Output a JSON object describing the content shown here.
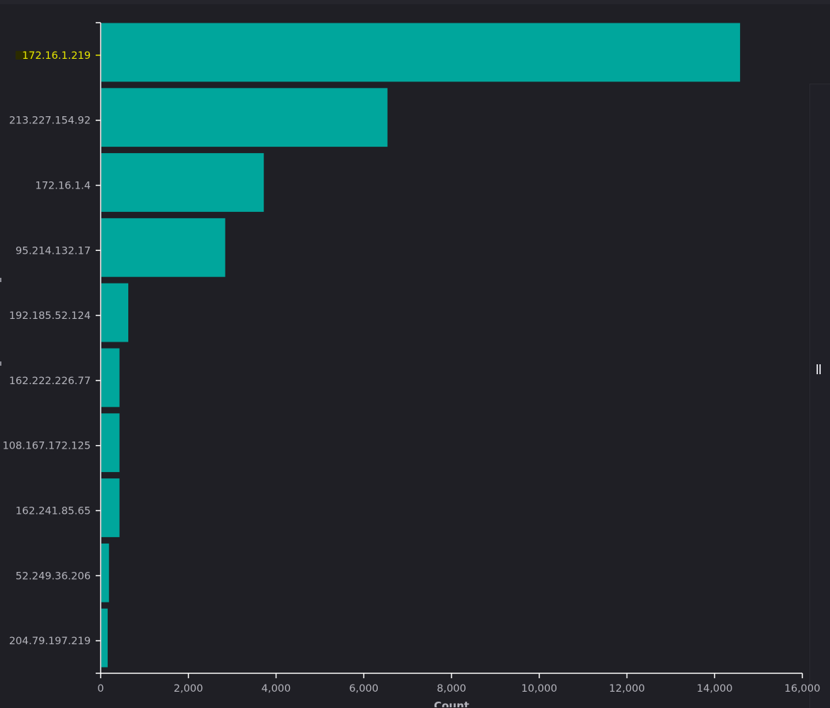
{
  "chart_data": {
    "type": "bar",
    "orientation": "horizontal",
    "categories": [
      "172.16.1.219",
      "213.227.154.92",
      "172.16.1.4",
      "95.214.132.17",
      "192.185.52.124",
      "162.222.226.77",
      "108.167.172.125",
      "162.241.85.65",
      "52.249.36.206",
      "204.79.197.219"
    ],
    "values": [
      14580,
      6540,
      3720,
      2840,
      630,
      430,
      430,
      430,
      190,
      160
    ],
    "xlabel": "Count",
    "ylabel": "",
    "xlim": [
      0,
      16000
    ],
    "xticks": [
      {
        "value": 0,
        "label": "0"
      },
      {
        "value": 2000,
        "label": "2,000"
      },
      {
        "value": 4000,
        "label": "4,000"
      },
      {
        "value": 6000,
        "label": "6,000"
      },
      {
        "value": 8000,
        "label": "8,000"
      },
      {
        "value": 10000,
        "label": "10,000"
      },
      {
        "value": 12000,
        "label": "12,000"
      },
      {
        "value": 14000,
        "label": "14,000"
      },
      {
        "value": 16000,
        "label": "16,000"
      }
    ],
    "highlighted_category": "172.16.1.219",
    "grid": false,
    "legend": "none"
  },
  "colors": {
    "background": "#1f1f25",
    "bar": "#00a69c",
    "axis": "#ffffff",
    "tick_label": "#b4b4bc",
    "highlight_label": "#e6e600",
    "highlight_bg": "#2b2b00"
  }
}
